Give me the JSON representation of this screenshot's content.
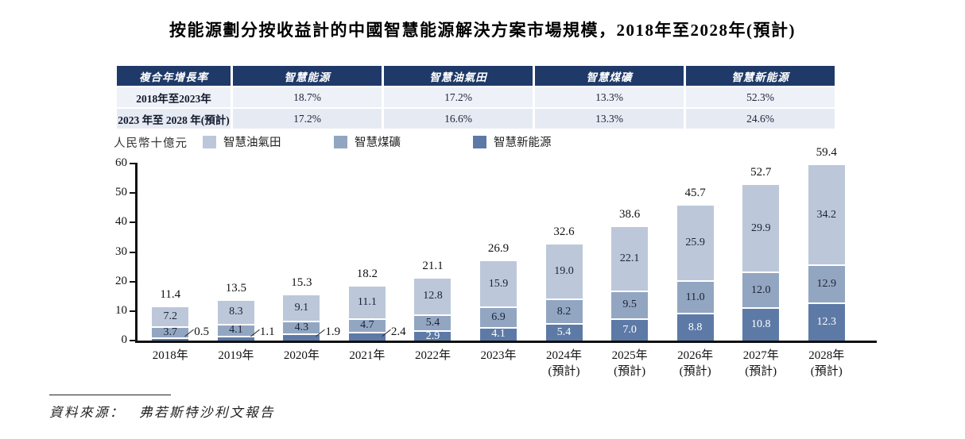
{
  "title": "按能源劃分按收益計的中國智慧能源解決方案市場規模，2018年至2028年(預計)",
  "table": {
    "header": [
      "複合年增長率",
      "智慧能源",
      "智慧油氣田",
      "智慧煤礦",
      "智慧新能源"
    ],
    "rows": [
      {
        "label": "2018年至2023年",
        "values": [
          "18.7%",
          "17.2%",
          "13.3%",
          "52.3%"
        ]
      },
      {
        "label": "2023 年至 2028 年(預計)",
        "values": [
          "17.2%",
          "16.6%",
          "13.3%",
          "24.6%"
        ]
      }
    ]
  },
  "chart_data": {
    "type": "stacked-bar",
    "title": "按能源劃分按收益計的中國智慧能源解決方案市場規模，2018年至2028年(預計)",
    "ylabel": "人民幣十億元",
    "ylim": [
      0,
      60
    ],
    "yticks": [
      0,
      10,
      20,
      30,
      40,
      50,
      60
    ],
    "grid": false,
    "legend_position": "top",
    "categories": [
      "2018年",
      "2019年",
      "2020年",
      "2021年",
      "2022年",
      "2023年",
      "2024年",
      "2025年",
      "2026年",
      "2027年",
      "2028年"
    ],
    "category_notes": [
      "",
      "",
      "",
      "",
      "",
      "",
      "(預計)",
      "(預計)",
      "(預計)",
      "(預計)",
      "(預計)"
    ],
    "series": [
      {
        "name": "智慧油氣田",
        "color": "#bcc8d9",
        "label_color": "#1c2233",
        "values": [
          7.2,
          8.3,
          9.1,
          11.1,
          12.8,
          15.9,
          19.0,
          22.1,
          25.9,
          29.9,
          34.2
        ]
      },
      {
        "name": "智慧煤礦",
        "color": "#92a6c2",
        "label_color": "#1c2233",
        "values": [
          3.7,
          4.1,
          4.3,
          4.7,
          5.4,
          6.9,
          8.2,
          9.5,
          11.0,
          12.0,
          12.9
        ]
      },
      {
        "name": "智慧新能源",
        "color": "#5d7aa6",
        "label_color": "#ffffff",
        "values": [
          0.5,
          1.1,
          1.9,
          2.4,
          2.9,
          4.1,
          5.4,
          7.0,
          8.8,
          10.8,
          12.3
        ],
        "outside_labels": [
          0,
          1,
          2,
          3
        ]
      }
    ],
    "totals": [
      11.4,
      13.5,
      15.3,
      18.2,
      21.1,
      26.9,
      32.6,
      38.6,
      45.7,
      52.7,
      59.4
    ]
  },
  "source": {
    "label": "資料來源：",
    "text": "弗若斯特沙利文報告"
  }
}
